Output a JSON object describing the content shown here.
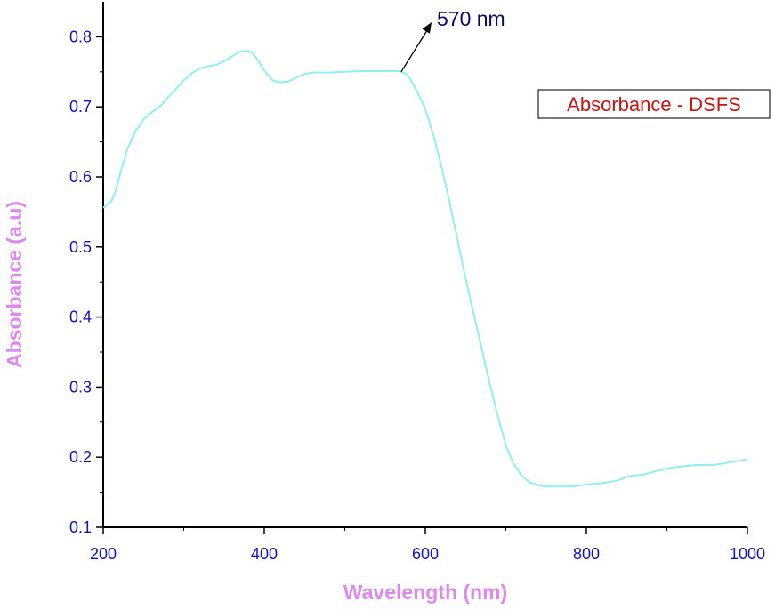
{
  "chart_data": {
    "type": "line",
    "xlabel": "Wavelength (nm)",
    "ylabel": "Absorbance (a.u)",
    "xlim": [
      200,
      1000
    ],
    "ylim": [
      0.1,
      0.85
    ],
    "x_ticks": [
      200,
      400,
      600,
      800,
      1000
    ],
    "y_ticks": [
      0.1,
      0.2,
      0.3,
      0.4,
      0.5,
      0.6,
      0.7,
      0.8
    ],
    "grid": false,
    "legend": {
      "label": "Absorbance - DSFS",
      "position": "top-right"
    },
    "annotation": {
      "text": "570 nm",
      "x": 570,
      "y": 0.75
    },
    "colors": {
      "line": "#8ff0ee",
      "tick_labels": "#1010c8",
      "axis_titles": "#dd88ee",
      "legend_text": "#cc1111",
      "annotation": "#0a0a6a"
    },
    "series": [
      {
        "name": "Absorbance - DSFS",
        "x": [
          200,
          205,
          210,
          215,
          220,
          225,
          230,
          240,
          250,
          260,
          270,
          280,
          290,
          300,
          310,
          320,
          330,
          340,
          350,
          360,
          370,
          380,
          385,
          390,
          400,
          410,
          420,
          430,
          440,
          450,
          460,
          470,
          480,
          500,
          520,
          540,
          560,
          565,
          570,
          575,
          580,
          590,
          600,
          610,
          620,
          630,
          640,
          650,
          660,
          670,
          680,
          690,
          700,
          710,
          720,
          730,
          740,
          750,
          760,
          770,
          780,
          790,
          800,
          820,
          840,
          850,
          860,
          870,
          880,
          890,
          900,
          920,
          940,
          960,
          970,
          980,
          990,
          1000
        ],
        "y": [
          0.556,
          0.56,
          0.565,
          0.578,
          0.6,
          0.62,
          0.64,
          0.665,
          0.682,
          0.692,
          0.7,
          0.713,
          0.725,
          0.738,
          0.748,
          0.755,
          0.758,
          0.76,
          0.765,
          0.772,
          0.779,
          0.78,
          0.777,
          0.77,
          0.752,
          0.738,
          0.735,
          0.736,
          0.742,
          0.747,
          0.749,
          0.749,
          0.749,
          0.75,
          0.751,
          0.751,
          0.751,
          0.751,
          0.75,
          0.748,
          0.742,
          0.722,
          0.697,
          0.66,
          0.615,
          0.565,
          0.51,
          0.455,
          0.405,
          0.355,
          0.305,
          0.258,
          0.217,
          0.19,
          0.173,
          0.164,
          0.16,
          0.158,
          0.158,
          0.158,
          0.158,
          0.159,
          0.161,
          0.163,
          0.167,
          0.172,
          0.174,
          0.175,
          0.178,
          0.181,
          0.184,
          0.187,
          0.189,
          0.189,
          0.191,
          0.193,
          0.195,
          0.197
        ]
      }
    ]
  }
}
